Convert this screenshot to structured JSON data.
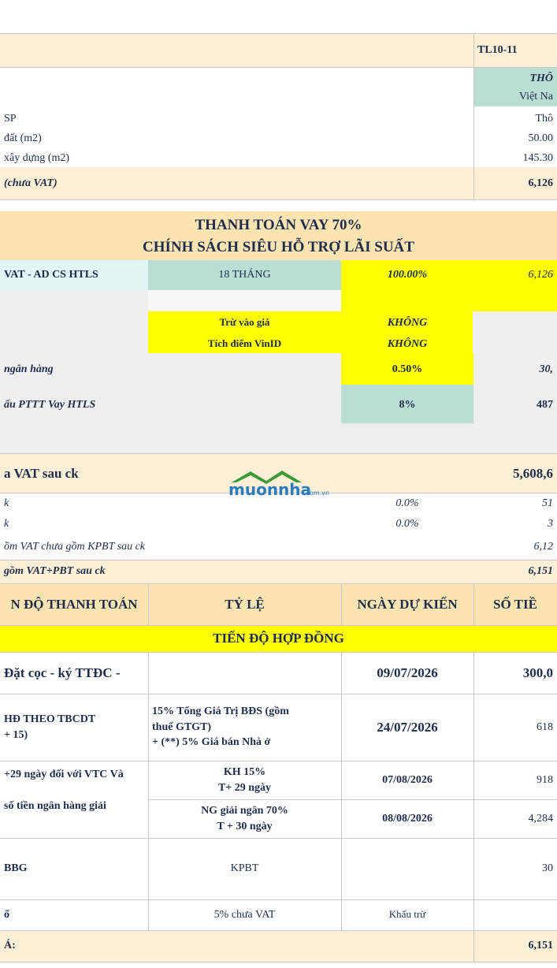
{
  "header": {
    "code": "TL10-11",
    "type": "THÔ",
    "origin": "Việt Na"
  },
  "info": [
    {
      "label": "SP",
      "value": "Thô"
    },
    {
      "label": "đất (m2)",
      "value": "50.00"
    },
    {
      "label": "xây dựng (m2)",
      "value": "145.30"
    }
  ],
  "price_row": {
    "label": "(chưa VAT)",
    "value": "6,126"
  },
  "policy": {
    "title": "THANH TOÁN VAY 70%",
    "subtitle": "CHÍNH SÁCH SIÊU HỖ TRỢ LÃI SUẤT"
  },
  "htls": {
    "label": "VAT - AD CS HTLS",
    "term": "18 THÁNG",
    "rate": "100.00%",
    "amount": "6,126"
  },
  "options": [
    {
      "label": "Trừ vào giá",
      "value": "KHÔNG"
    },
    {
      "label": "Tích điểm VinID",
      "value": "KHÔNG"
    }
  ],
  "bank": {
    "label": "ngân hàng",
    "rate": "0.50%",
    "amount": "30,"
  },
  "pttt": {
    "label": "ấu PTTT Vay HTLS",
    "rate": "8%",
    "amount": "487"
  },
  "after_discount": {
    "label": "a VAT sau ck",
    "value": "5,608,6"
  },
  "discounts": [
    {
      "label": "k",
      "rate": "0.0%",
      "amount": "51"
    },
    {
      "label": "k",
      "rate": "0.0%",
      "amount": "3"
    }
  ],
  "incl_vat": {
    "label": "ồm VAT chưa gồm KPBT sau ck",
    "value": "6,12"
  },
  "total_row": {
    "label": "gồm VAT+PBT sau ck",
    "value": "6,151"
  },
  "schedule": {
    "columns": [
      "N ĐỘ THANH TOÁN",
      "TỶ LỆ",
      "NGÀY DỰ KIẾN",
      "SỐ TIỀ"
    ],
    "section": "TIẾN ĐỘ HỢP ĐỒNG",
    "rows": [
      {
        "step": "Đặt cọc - ký TTĐC -",
        "date": "09/07/2026",
        "amount": "300,0"
      },
      {
        "step": "HĐ THEO TBCDT\n+ 15)",
        "ratio": "15% Tổng Giá Trị BĐS (gồm\nthuế GTGT)\n+ (**)  5% Giá bán Nhà ở",
        "date": "24/07/2026",
        "amount": "618"
      },
      {
        "step": "+29 ngày đối với VTC Và",
        "ratio": "KH 15%\nT+ 29 ngày",
        "date": "07/08/2026",
        "amount": "918"
      },
      {
        "step": "số tiền ngân hàng giải",
        "ratio": "NG giải ngân 70%\nT + 30 ngày",
        "date": "08/08/2026",
        "amount": "4,284"
      },
      {
        "step": "BBG",
        "ratio": "KPBT",
        "amount": "30"
      },
      {
        "step": "ổ",
        "ratio": "5% chưa VAT",
        "date": "Khấu trừ"
      }
    ],
    "total": {
      "label": "Á:",
      "value": "6,151"
    }
  },
  "watermark": {
    "brand": "muonnha",
    "domain": ".com.vn"
  }
}
